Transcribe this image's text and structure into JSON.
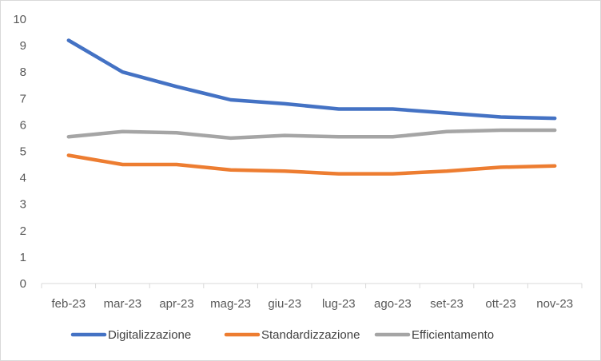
{
  "chart_data": {
    "type": "line",
    "categories": [
      "feb-23",
      "mar-23",
      "apr-23",
      "mag-23",
      "giu-23",
      "lug-23",
      "ago-23",
      "set-23",
      "ott-23",
      "nov-23"
    ],
    "ylim": [
      0,
      10
    ],
    "yticks": [
      "0",
      "1",
      "2",
      "3",
      "4",
      "5",
      "6",
      "7",
      "8",
      "9",
      "10"
    ],
    "grid": false,
    "legend_position": "bottom",
    "series": [
      {
        "name": "Digitalizzazione",
        "color": "#4472C4",
        "values": [
          9.2,
          8.0,
          7.45,
          6.95,
          6.8,
          6.6,
          6.6,
          6.45,
          6.3,
          6.25
        ]
      },
      {
        "name": "Standardizzazione",
        "color": "#ED7D31",
        "values": [
          4.85,
          4.5,
          4.5,
          4.3,
          4.25,
          4.15,
          4.15,
          4.25,
          4.4,
          4.45
        ]
      },
      {
        "name": "Efficientamento",
        "color": "#A5A5A5",
        "values": [
          5.55,
          5.75,
          5.7,
          5.5,
          5.6,
          5.55,
          5.55,
          5.75,
          5.8,
          5.8
        ]
      }
    ]
  }
}
